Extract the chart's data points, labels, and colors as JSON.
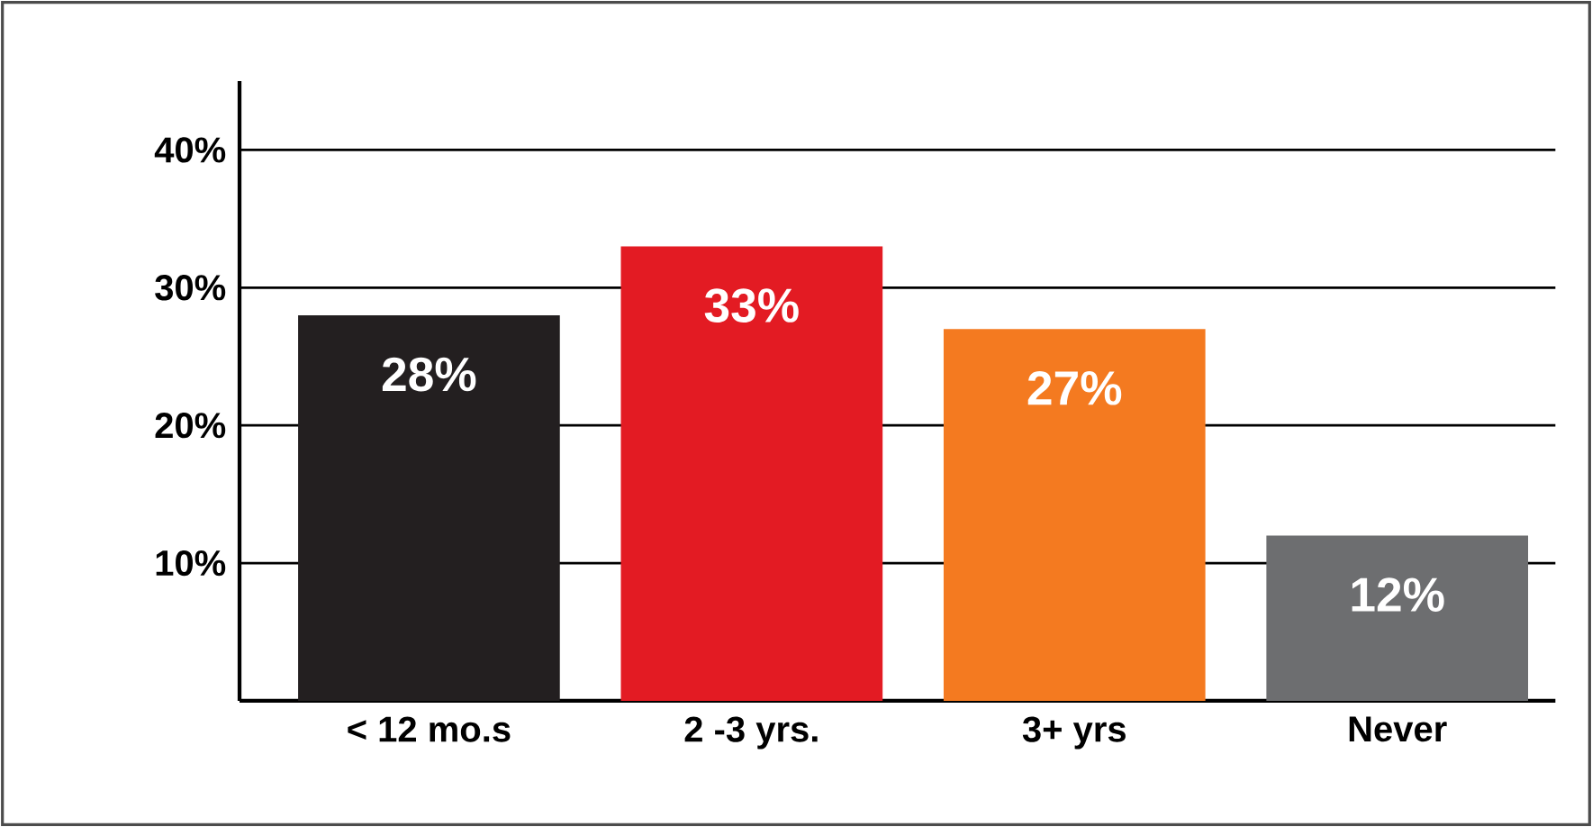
{
  "chart_data": {
    "type": "bar",
    "categories": [
      "< 12 mo.s",
      "2 -3 yrs.",
      "3+ yrs",
      "Never"
    ],
    "values": [
      28,
      33,
      27,
      12
    ],
    "colors": [
      "#231f20",
      "#e31b23",
      "#f47a20",
      "#6d6e70"
    ],
    "value_labels": [
      "28%",
      "33%",
      "27%",
      "12%"
    ],
    "ylim": [
      0,
      45
    ],
    "yticks": [
      {
        "value": 10,
        "label": "10%"
      },
      {
        "value": 20,
        "label": "20%"
      },
      {
        "value": 30,
        "label": "30%"
      },
      {
        "value": 40,
        "label": "40%"
      }
    ],
    "grid": "y"
  }
}
